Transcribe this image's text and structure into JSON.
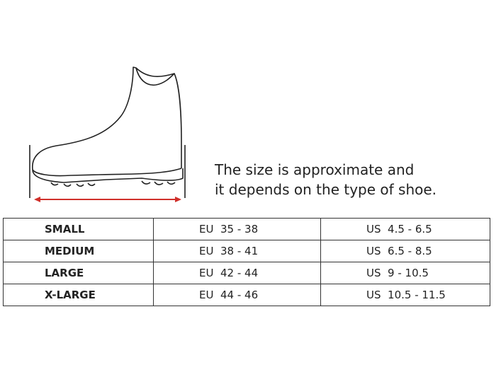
{
  "note": {
    "lines": [
      "The size is approximate and",
      "it depends on the type of shoe."
    ]
  },
  "table": {
    "rows": [
      [
        "SMALL",
        "EU  35 - 38",
        "US  4.5 - 6.5"
      ],
      [
        "MEDIUM",
        "EU  38 - 41",
        "US  6.5 - 8.5"
      ],
      [
        "LARGE",
        "EU  42 - 44",
        "US  9 - 10.5"
      ],
      [
        "X-LARGE",
        "EU  44 - 46",
        "US  10.5 - 11.5"
      ]
    ]
  }
}
